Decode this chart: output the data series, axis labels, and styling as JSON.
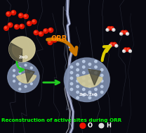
{
  "bg_color": "#080810",
  "title_text": "Reconstruction of active sites during ORR",
  "title_color": "#00ff00",
  "title_fontsize": 5.2,
  "orr_text": "ORR",
  "orr_color": "#ff8800",
  "zno_left_text": "ZnO",
  "zno_right_text": "ZnOₓ/ZnO",
  "legend_o_color": "#ee1100",
  "legend_h_color": "#dddddd",
  "legend_o_label": "O",
  "legend_h_label": "H",
  "sphere_left_color": "#d0c898",
  "sphere_blue_color": "#8090b0",
  "arrow_orange_color": "#cc7700",
  "arrow_yellow_color": "#ddcc00",
  "arrow_green_color": "#22cc22",
  "lightning_white": "#e8eeff",
  "lightning_blue": "#9aabcc"
}
